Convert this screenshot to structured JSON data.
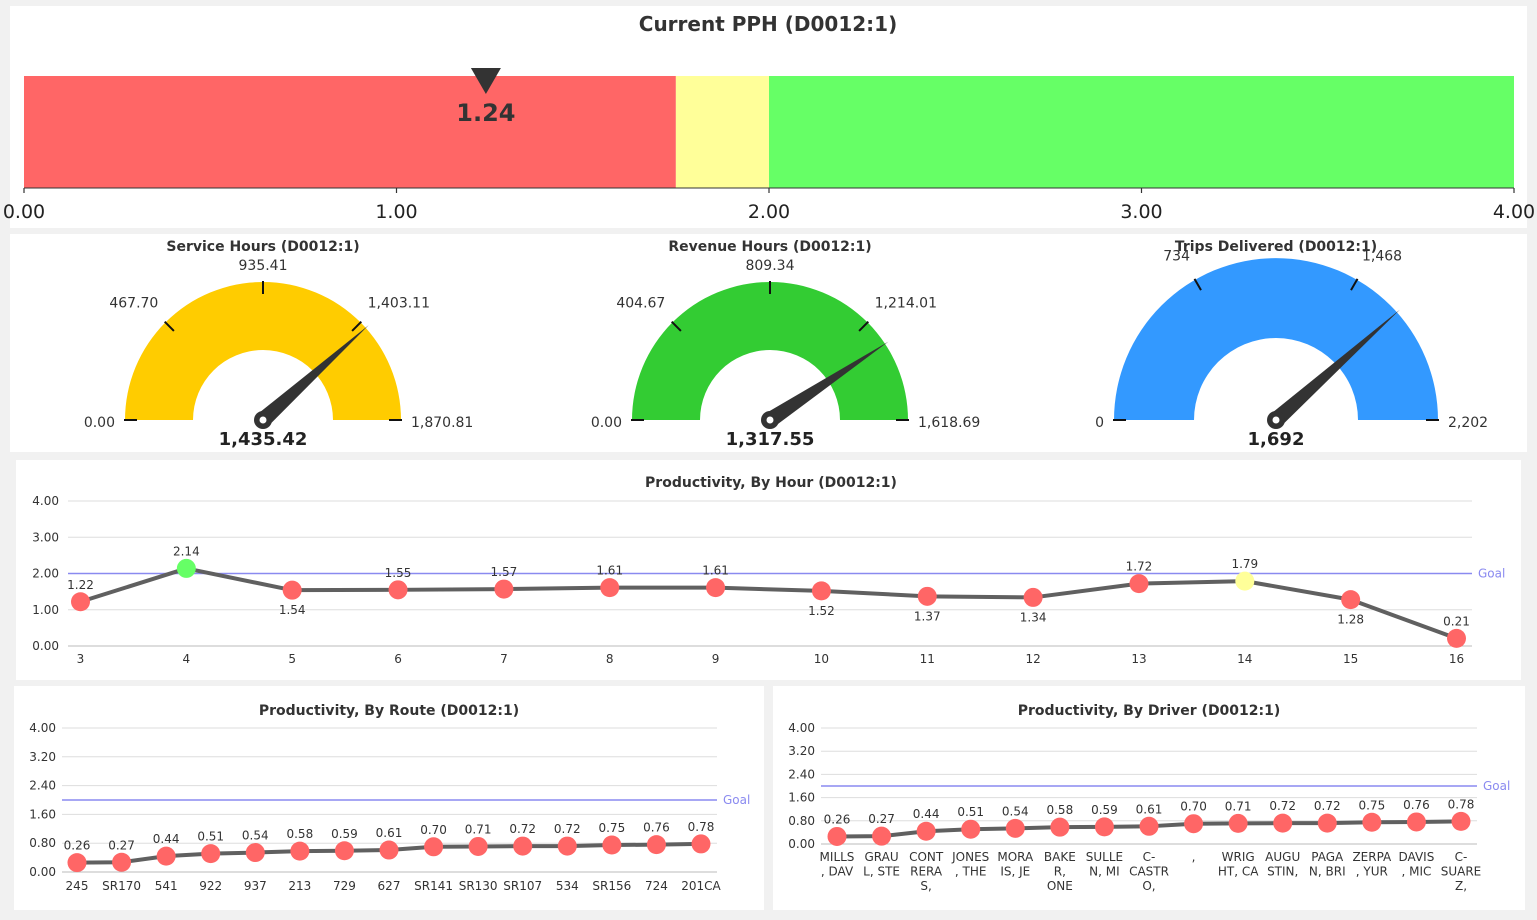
{
  "colors": {
    "red": "#ff6666",
    "yellow": "#ffff99",
    "green": "#66ff66",
    "gauge_yellow": "#ffcc00",
    "gauge_green": "#33cc33",
    "gauge_blue": "#3399ff",
    "goal": "#8a8af0",
    "line": "#606060",
    "needle": "#333333"
  },
  "chart_data": [
    {
      "id": "pph",
      "type": "bullet",
      "title": "Current PPH (D0012:1)",
      "value": 1.24,
      "value_label": "1.24",
      "xlim": [
        0,
        4
      ],
      "ticks": [
        0,
        1,
        2,
        3,
        4
      ],
      "tick_labels": [
        "0.00",
        "1.00",
        "2.00",
        "3.00",
        "4.00"
      ],
      "bands": [
        {
          "from": 0,
          "to": 1.75,
          "color": "red"
        },
        {
          "from": 1.75,
          "to": 2.0,
          "color": "yellow"
        },
        {
          "from": 2.0,
          "to": 4.0,
          "color": "green"
        }
      ]
    },
    {
      "id": "service",
      "type": "gauge",
      "title": "Service Hours (D0012:1)",
      "min": 0,
      "max": 1870.81,
      "value": 1435.42,
      "value_label": "1,435.42",
      "ticks": [
        0,
        467.7,
        935.41,
        1403.11,
        1870.81
      ],
      "tick_labels": [
        "0.00",
        "467.70",
        "935.41",
        "1,403.11",
        "1,870.81"
      ],
      "color": "gauge_yellow"
    },
    {
      "id": "revenue",
      "type": "gauge",
      "title": "Revenue Hours (D0012:1)",
      "min": 0,
      "max": 1618.69,
      "value": 1317.55,
      "value_label": "1,317.55",
      "ticks": [
        0,
        404.67,
        809.34,
        1214.01,
        1618.69
      ],
      "tick_labels": [
        "0.00",
        "404.67",
        "809.34",
        "1,214.01",
        "1,618.69"
      ],
      "color": "gauge_green"
    },
    {
      "id": "trips",
      "type": "gauge",
      "title": "Trips Delivered (D0012:1)",
      "min": 0,
      "max": 2202,
      "value": 1692,
      "value_label": "1,692",
      "ticks": [
        0,
        734,
        1468,
        2202
      ],
      "tick_labels": [
        "0",
        "734",
        "1,468",
        "2,202"
      ],
      "color": "gauge_blue"
    },
    {
      "id": "hour",
      "type": "line",
      "title": "Productivity, By Hour (D0012:1)",
      "categories": [
        "3",
        "4",
        "5",
        "6",
        "7",
        "8",
        "9",
        "10",
        "11",
        "12",
        "13",
        "14",
        "15",
        "16"
      ],
      "values": [
        1.22,
        2.14,
        1.54,
        1.55,
        1.57,
        1.61,
        1.61,
        1.52,
        1.37,
        1.34,
        1.72,
        1.79,
        1.28,
        0.21
      ],
      "value_labels": [
        "1.22",
        "2.14",
        "1.54",
        "1.55",
        "1.57",
        "1.61",
        "1.61",
        "1.52",
        "1.37",
        "1.34",
        "1.72",
        "1.79",
        "1.28",
        "0.21"
      ],
      "label_below": [
        false,
        false,
        true,
        false,
        false,
        false,
        false,
        true,
        true,
        true,
        false,
        false,
        true,
        false
      ],
      "point_colors": [
        "red",
        "green",
        "red",
        "red",
        "red",
        "red",
        "red",
        "red",
        "red",
        "red",
        "red",
        "yellow",
        "red",
        "red"
      ],
      "ylim": [
        0,
        4
      ],
      "yticks": [
        0,
        1,
        2,
        3,
        4
      ],
      "ytick_labels": [
        "0.00",
        "1.00",
        "2.00",
        "3.00",
        "4.00"
      ],
      "goal": 2.0,
      "goal_label": "Goal"
    },
    {
      "id": "route",
      "type": "line",
      "title": "Productivity, By Route (D0012:1)",
      "categories": [
        [
          "245"
        ],
        [
          "SR170"
        ],
        [
          "541"
        ],
        [
          "922"
        ],
        [
          "937"
        ],
        [
          "213"
        ],
        [
          "729"
        ],
        [
          "627"
        ],
        [
          "SR141"
        ],
        [
          "SR130"
        ],
        [
          "SR107"
        ],
        [
          "534"
        ],
        [
          "SR156"
        ],
        [
          "724"
        ],
        [
          "201CA"
        ]
      ],
      "values": [
        0.26,
        0.27,
        0.44,
        0.51,
        0.54,
        0.58,
        0.59,
        0.61,
        0.7,
        0.71,
        0.72,
        0.72,
        0.75,
        0.76,
        0.78
      ],
      "value_labels": [
        "0.26",
        "0.27",
        "0.44",
        "0.51",
        "0.54",
        "0.58",
        "0.59",
        "0.61",
        "0.70",
        "0.71",
        "0.72",
        "0.72",
        "0.75",
        "0.76",
        "0.78"
      ],
      "ylim": [
        0,
        4
      ],
      "yticks": [
        0,
        0.8,
        1.6,
        2.4,
        3.2,
        4.0
      ],
      "ytick_labels": [
        "0.00",
        "0.80",
        "1.60",
        "2.40",
        "3.20",
        "4.00"
      ],
      "goal": 2.0,
      "goal_label": "Goal"
    },
    {
      "id": "driver",
      "type": "line",
      "title": "Productivity, By Driver (D0012:1)",
      "categories": [
        [
          "MILLS",
          ", DAV"
        ],
        [
          "GRAU",
          "L, STE"
        ],
        [
          "CONT",
          "RERA",
          "S,"
        ],
        [
          "JONES",
          ", THE"
        ],
        [
          "MORA",
          "IS, JE"
        ],
        [
          "BAKE",
          "R,",
          "ONE"
        ],
        [
          "SULLE",
          "N, MI"
        ],
        [
          "C-",
          "CASTR",
          "O,"
        ],
        [
          ","
        ],
        [
          "WRIG",
          "HT, CA"
        ],
        [
          "AUGU",
          "STIN,"
        ],
        [
          "PAGA",
          "N, BRI"
        ],
        [
          "ZERPA",
          ", YUR"
        ],
        [
          "DAVIS",
          ", MIC"
        ],
        [
          "C-",
          "SUARE",
          "Z,"
        ]
      ],
      "values": [
        0.26,
        0.27,
        0.44,
        0.51,
        0.54,
        0.58,
        0.59,
        0.61,
        0.7,
        0.71,
        0.72,
        0.72,
        0.75,
        0.76,
        0.78
      ],
      "value_labels": [
        "0.26",
        "0.27",
        "0.44",
        "0.51",
        "0.54",
        "0.58",
        "0.59",
        "0.61",
        "0.70",
        "0.71",
        "0.72",
        "0.72",
        "0.75",
        "0.76",
        "0.78"
      ],
      "ylim": [
        0,
        4
      ],
      "yticks": [
        0,
        0.8,
        1.6,
        2.4,
        3.2,
        4.0
      ],
      "ytick_labels": [
        "0.00",
        "0.80",
        "1.60",
        "2.40",
        "3.20",
        "4.00"
      ],
      "goal": 2.0,
      "goal_label": "Goal"
    }
  ]
}
